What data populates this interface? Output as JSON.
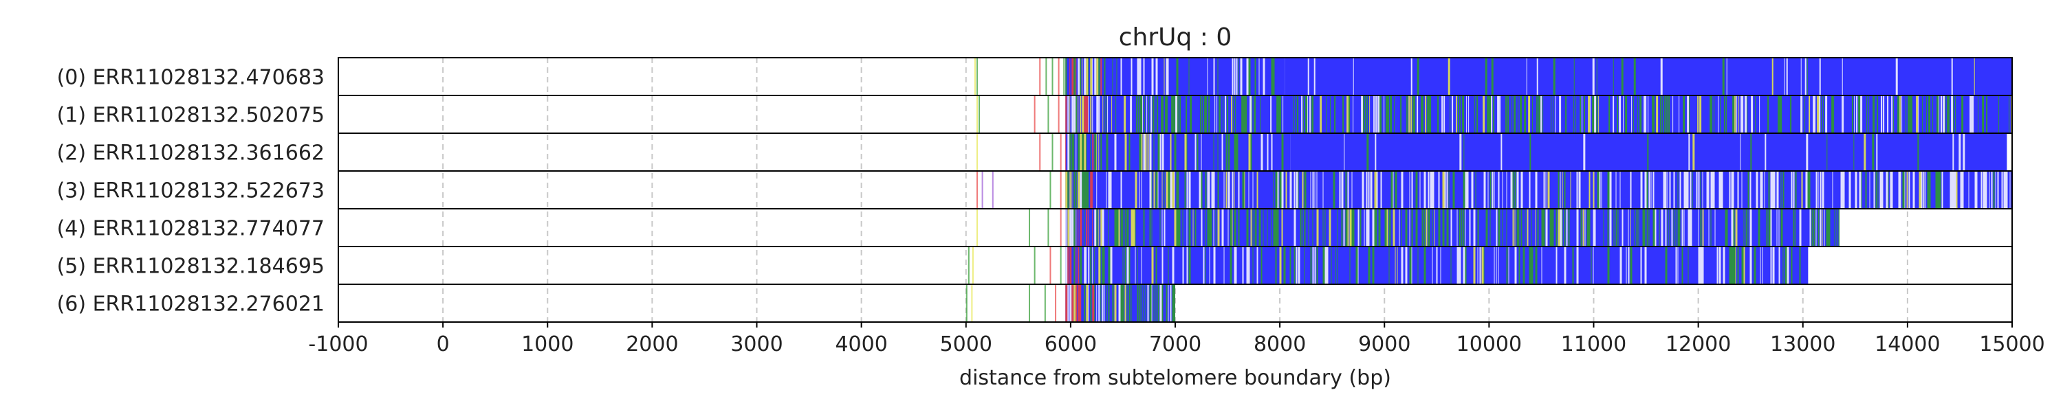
{
  "chart_data": {
    "type": "heatmap",
    "title": "chrUq : 0",
    "xlabel": "distance from subtelomere boundary (bp)",
    "ylabel": "",
    "xlim": [
      -1000,
      15000
    ],
    "xticks": [
      -1000,
      0,
      1000,
      2000,
      3000,
      4000,
      5000,
      6000,
      7000,
      8000,
      9000,
      10000,
      11000,
      12000,
      13000,
      14000,
      15000
    ],
    "xtick_labels": [
      "-1000",
      "0",
      "1000",
      "2000",
      "3000",
      "4000",
      "5000",
      "6000",
      "7000",
      "8000",
      "9000",
      "10000",
      "11000",
      "12000",
      "13000",
      "14000",
      "15000"
    ],
    "grid": "vertical dashed",
    "colors": {
      "blue": "#3333ff",
      "green": "#2e9a2e",
      "yellow": "#e6e64d",
      "red": "#e84040",
      "white": "#ffffff",
      "grid": "#c8c8c8"
    },
    "reads": [
      {
        "label": "(0) ERR11028132.470683",
        "scattered_marks": [
          {
            "x": 5080,
            "color": "yellow"
          },
          {
            "x": 5100,
            "color": "green"
          },
          {
            "x": 5700,
            "color": "red"
          },
          {
            "x": 5760,
            "color": "green"
          },
          {
            "x": 5820,
            "color": "green"
          },
          {
            "x": 5880,
            "color": "red"
          },
          {
            "x": 5930,
            "color": "green"
          }
        ],
        "segments": [
          {
            "start": 5950,
            "end": 6300,
            "pattern": "mixed"
          },
          {
            "start": 6300,
            "end": 8050,
            "pattern": "blue_dense_green"
          },
          {
            "start": 8050,
            "end": 15000,
            "pattern": "blue_sparse"
          }
        ]
      },
      {
        "label": "(1) ERR11028132.502075",
        "scattered_marks": [
          {
            "x": 5100,
            "color": "yellow"
          },
          {
            "x": 5120,
            "color": "green"
          },
          {
            "x": 5650,
            "color": "red"
          },
          {
            "x": 5780,
            "color": "green"
          },
          {
            "x": 5880,
            "color": "red"
          }
        ],
        "segments": [
          {
            "start": 5950,
            "end": 6350,
            "pattern": "mixed"
          },
          {
            "start": 6350,
            "end": 15000,
            "pattern": "blue_green_heavy"
          }
        ]
      },
      {
        "label": "(2) ERR11028132.361662",
        "scattered_marks": [
          {
            "x": 5100,
            "color": "yellow"
          },
          {
            "x": 5700,
            "color": "red"
          },
          {
            "x": 5820,
            "color": "green"
          },
          {
            "x": 5900,
            "color": "red"
          }
        ],
        "segments": [
          {
            "start": 5950,
            "end": 6300,
            "pattern": "mixed"
          },
          {
            "start": 6300,
            "end": 8100,
            "pattern": "blue_dense_green"
          },
          {
            "start": 8100,
            "end": 14950,
            "pattern": "blue_sparse"
          }
        ]
      },
      {
        "label": "(3) ERR11028132.522673",
        "scattered_marks": [
          {
            "x": 5100,
            "color": "red"
          },
          {
            "x": 5150,
            "color": "purple"
          },
          {
            "x": 5250,
            "color": "purple"
          },
          {
            "x": 5800,
            "color": "green"
          },
          {
            "x": 5900,
            "color": "red"
          }
        ],
        "segments": [
          {
            "start": 5950,
            "end": 6300,
            "pattern": "mixed"
          },
          {
            "start": 6300,
            "end": 15000,
            "pattern": "blue_white_heavy"
          }
        ]
      },
      {
        "label": "(4) ERR11028132.774077",
        "scattered_marks": [
          {
            "x": 5100,
            "color": "yellow"
          },
          {
            "x": 5600,
            "color": "green"
          },
          {
            "x": 5780,
            "color": "green"
          },
          {
            "x": 5900,
            "color": "red"
          }
        ],
        "segments": [
          {
            "start": 5950,
            "end": 6300,
            "pattern": "mixed"
          },
          {
            "start": 6300,
            "end": 13350,
            "pattern": "blue_green_heavy"
          }
        ]
      },
      {
        "label": "(5) ERR11028132.184695",
        "scattered_marks": [
          {
            "x": 5020,
            "color": "green"
          },
          {
            "x": 5060,
            "color": "yellow"
          },
          {
            "x": 5650,
            "color": "green"
          },
          {
            "x": 5800,
            "color": "red"
          },
          {
            "x": 5900,
            "color": "green"
          }
        ],
        "segments": [
          {
            "start": 5950,
            "end": 6300,
            "pattern": "mixed"
          },
          {
            "start": 6300,
            "end": 13050,
            "pattern": "blue_dense_green"
          }
        ]
      },
      {
        "label": "(6) ERR11028132.276021",
        "scattered_marks": [
          {
            "x": 5000,
            "color": "green"
          },
          {
            "x": 5050,
            "color": "yellow"
          },
          {
            "x": 5600,
            "color": "green"
          },
          {
            "x": 5750,
            "color": "green"
          },
          {
            "x": 5850,
            "color": "red"
          }
        ],
        "segments": [
          {
            "start": 5950,
            "end": 6300,
            "pattern": "mixed"
          },
          {
            "start": 6300,
            "end": 7000,
            "pattern": "green_heavy"
          }
        ]
      }
    ]
  }
}
